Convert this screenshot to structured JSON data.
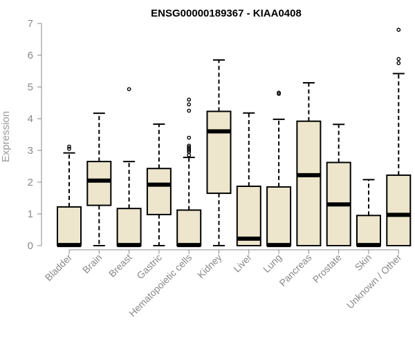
{
  "chart_data": {
    "type": "box",
    "title": "ENSG00000189367 - KIAA0408",
    "xlabel": "",
    "ylabel": "Expression",
    "ylim": [
      0,
      7
    ],
    "yticks": [
      0,
      1,
      2,
      3,
      4,
      5,
      6,
      7
    ],
    "box_fill": "#ede6cc",
    "categories": [
      "Bladder",
      "Brain",
      "Breast",
      "Gastric",
      "Hematopoietic cells",
      "Kidney",
      "Liver",
      "Lung",
      "Pancreas",
      "Prostate",
      "Skin",
      "Unknown / Other"
    ],
    "boxes": [
      {
        "name": "Bladder",
        "min": 0,
        "q1": 0,
        "median": 0.02,
        "q3": 1.22,
        "max": 2.92,
        "outliers": [
          3.05,
          3.12
        ]
      },
      {
        "name": "Brain",
        "min": 0,
        "q1": 1.27,
        "median": 2.05,
        "q3": 2.65,
        "max": 4.17,
        "outliers": []
      },
      {
        "name": "Breast",
        "min": 0,
        "q1": 0,
        "median": 0.02,
        "q3": 1.17,
        "max": 2.65,
        "outliers": [
          4.93
        ]
      },
      {
        "name": "Gastric",
        "min": 0,
        "q1": 0.98,
        "median": 1.92,
        "q3": 2.43,
        "max": 3.83,
        "outliers": []
      },
      {
        "name": "Hematopoietic cells",
        "min": 0,
        "q1": 0,
        "median": 0.02,
        "q3": 1.12,
        "max": 2.78,
        "outliers": [
          2.85,
          2.95,
          3.0,
          3.05,
          3.1,
          3.15,
          3.4,
          4.25,
          4.45,
          4.6
        ]
      },
      {
        "name": "Kidney",
        "min": 0,
        "q1": 1.65,
        "median": 3.6,
        "q3": 4.23,
        "max": 5.85,
        "outliers": []
      },
      {
        "name": "Liver",
        "min": 0,
        "q1": 0,
        "median": 0.22,
        "q3": 1.87,
        "max": 4.18,
        "outliers": []
      },
      {
        "name": "Lung",
        "min": 0,
        "q1": 0,
        "median": 0.02,
        "q3": 1.85,
        "max": 3.98,
        "outliers": [
          4.78,
          4.82
        ]
      },
      {
        "name": "Pancreas",
        "min": 0,
        "q1": 0,
        "median": 2.22,
        "q3": 3.92,
        "max": 5.13,
        "outliers": []
      },
      {
        "name": "Prostate",
        "min": 0,
        "q1": 0,
        "median": 1.3,
        "q3": 2.62,
        "max": 3.82,
        "outliers": []
      },
      {
        "name": "Skin",
        "min": 0,
        "q1": 0,
        "median": 0.02,
        "q3": 0.95,
        "max": 2.08,
        "outliers": []
      },
      {
        "name": "Unknown / Other",
        "min": 0,
        "q1": 0,
        "median": 0.97,
        "q3": 2.22,
        "max": 5.42,
        "outliers": [
          5.75,
          5.88,
          6.8
        ]
      }
    ]
  }
}
